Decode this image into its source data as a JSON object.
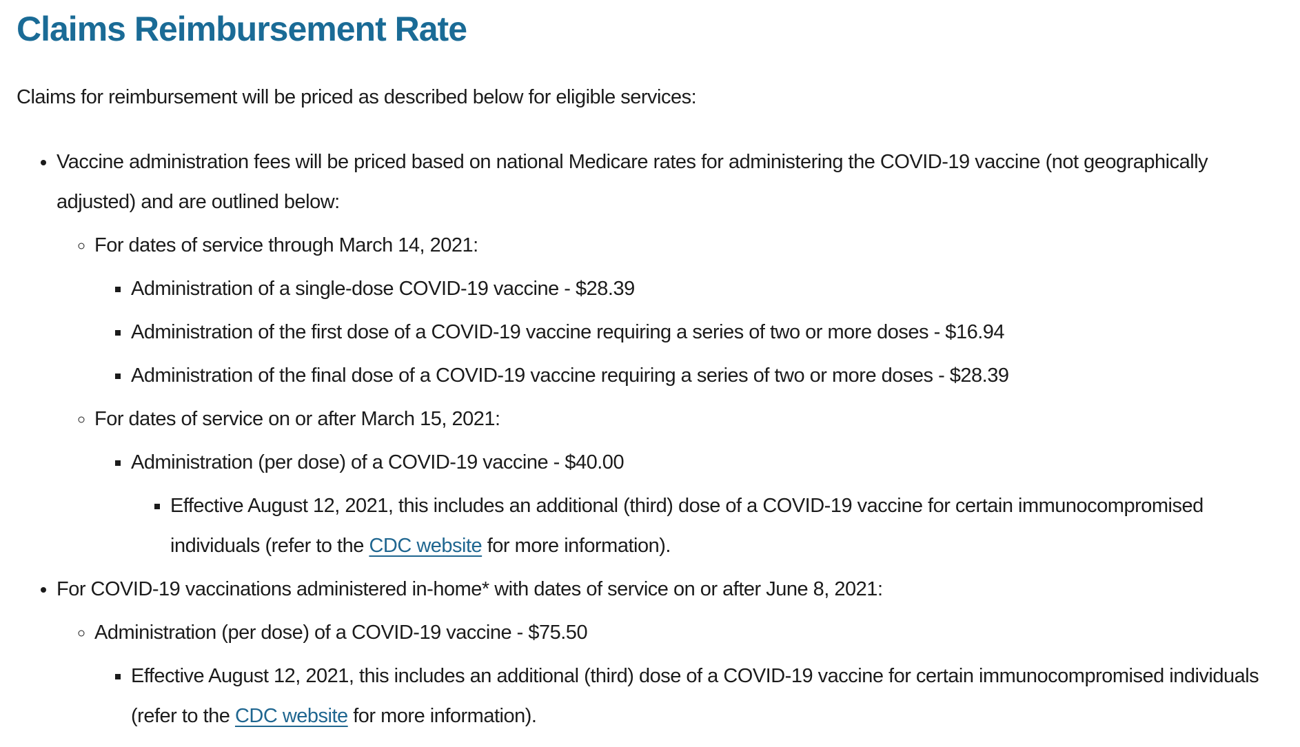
{
  "colors": {
    "heading": "#1a6b96",
    "link": "#1f6690",
    "body_text": "#1b1b1b",
    "background": "#ffffff"
  },
  "heading": "Claims Reimbursement Rate",
  "intro": "Claims for reimbursement will be priced as described below for eligible services:",
  "list": {
    "vaccine_fees": {
      "text": "Vaccine administration fees will be priced based on national Medicare rates for administering the COVID-19 vaccine (not geographically adjusted) and are outlined below:",
      "through_march_14": {
        "text": "For dates of service through March 14, 2021:",
        "items": [
          {
            "text": "Administration of a single-dose COVID-19 vaccine - $28.39"
          },
          {
            "text": "Administration of the first dose of a COVID-19 vaccine requiring a series of two or more doses - $16.94"
          },
          {
            "text": "Administration of the final dose of a COVID-19 vaccine requiring a series of two or more doses - $28.39"
          }
        ]
      },
      "on_or_after_march_15": {
        "text": "For dates of service on or after March 15, 2021:",
        "per_dose": {
          "text": "Administration (per dose) of a COVID-19 vaccine - $40.00",
          "effective_note": {
            "text_before": "Effective August 12, 2021, this includes an additional (third) dose of a COVID-19 vaccine for certain immunocompromised individuals (refer to the ",
            "link_text": "CDC website",
            "text_after": " for more information)."
          }
        }
      }
    },
    "in_home": {
      "text": "For COVID-19 vaccinations administered in-home* with dates of service on or after June 8, 2021:",
      "per_dose": {
        "text": "Administration (per dose) of a COVID-19 vaccine - $75.50",
        "effective_note": {
          "text_before": "Effective August 12, 2021, this includes an additional (third) dose of a COVID-19 vaccine for certain immunocompromised individuals (refer to the ",
          "link_text": "CDC website",
          "text_after": " for more information)."
        }
      }
    }
  }
}
